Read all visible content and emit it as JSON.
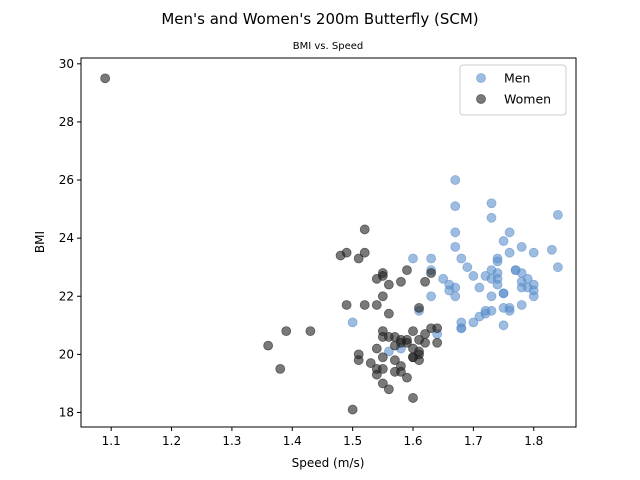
{
  "chart_data": {
    "type": "scatter",
    "title": "Men's and Women's 200m Butterfly (SCM)",
    "subtitle": "BMI vs. Speed",
    "xlabel": "Speed (m/s)",
    "ylabel": "BMI",
    "xlim": [
      1.05,
      1.87
    ],
    "ylim": [
      17.5,
      30.2
    ],
    "xticks": [
      1.1,
      1.2,
      1.3,
      1.4,
      1.5,
      1.6,
      1.7,
      1.8
    ],
    "yticks": [
      18,
      20,
      22,
      24,
      26,
      28,
      30
    ],
    "grid": false,
    "legend_position": "top-right",
    "series": [
      {
        "name": "Men",
        "color": "#5b8fcb",
        "opacity": 0.6,
        "points": [
          [
            1.5,
            21.1
          ],
          [
            1.56,
            20.1
          ],
          [
            1.58,
            20.2
          ],
          [
            1.6,
            23.3
          ],
          [
            1.61,
            21.5
          ],
          [
            1.63,
            23.3
          ],
          [
            1.63,
            22.9
          ],
          [
            1.63,
            22.0
          ],
          [
            1.64,
            20.7
          ],
          [
            1.65,
            22.6
          ],
          [
            1.66,
            22.2
          ],
          [
            1.66,
            22.4
          ],
          [
            1.67,
            26.0
          ],
          [
            1.67,
            25.1
          ],
          [
            1.67,
            24.2
          ],
          [
            1.67,
            23.7
          ],
          [
            1.67,
            22.3
          ],
          [
            1.67,
            22.0
          ],
          [
            1.68,
            20.9
          ],
          [
            1.68,
            20.9
          ],
          [
            1.68,
            21.1
          ],
          [
            1.68,
            23.3
          ],
          [
            1.69,
            23.0
          ],
          [
            1.7,
            22.7
          ],
          [
            1.7,
            21.1
          ],
          [
            1.71,
            21.3
          ],
          [
            1.71,
            22.3
          ],
          [
            1.72,
            21.5
          ],
          [
            1.72,
            22.7
          ],
          [
            1.72,
            21.4
          ],
          [
            1.73,
            25.2
          ],
          [
            1.73,
            24.7
          ],
          [
            1.73,
            22.9
          ],
          [
            1.73,
            22.6
          ],
          [
            1.73,
            22.0
          ],
          [
            1.73,
            21.5
          ],
          [
            1.74,
            23.3
          ],
          [
            1.74,
            22.8
          ],
          [
            1.74,
            22.6
          ],
          [
            1.74,
            22.4
          ],
          [
            1.74,
            23.2
          ],
          [
            1.75,
            23.9
          ],
          [
            1.75,
            22.1
          ],
          [
            1.75,
            22.1
          ],
          [
            1.75,
            21.6
          ],
          [
            1.75,
            21.0
          ],
          [
            1.76,
            24.2
          ],
          [
            1.76,
            23.5
          ],
          [
            1.76,
            21.6
          ],
          [
            1.76,
            21.5
          ],
          [
            1.77,
            22.9
          ],
          [
            1.77,
            22.9
          ],
          [
            1.78,
            23.7
          ],
          [
            1.78,
            22.8
          ],
          [
            1.78,
            22.5
          ],
          [
            1.78,
            22.3
          ],
          [
            1.78,
            21.7
          ],
          [
            1.79,
            22.6
          ],
          [
            1.79,
            22.3
          ],
          [
            1.8,
            23.5
          ],
          [
            1.8,
            22.4
          ],
          [
            1.8,
            22.2
          ],
          [
            1.8,
            22.0
          ],
          [
            1.83,
            23.6
          ],
          [
            1.84,
            24.8
          ],
          [
            1.84,
            23.0
          ]
        ]
      },
      {
        "name": "Women",
        "color": "#1f1f1f",
        "opacity": 0.6,
        "points": [
          [
            1.09,
            29.5
          ],
          [
            1.36,
            20.3
          ],
          [
            1.38,
            19.5
          ],
          [
            1.39,
            20.8
          ],
          [
            1.43,
            20.8
          ],
          [
            1.48,
            23.4
          ],
          [
            1.49,
            23.5
          ],
          [
            1.49,
            21.7
          ],
          [
            1.5,
            18.1
          ],
          [
            1.51,
            23.3
          ],
          [
            1.51,
            20.0
          ],
          [
            1.51,
            19.8
          ],
          [
            1.52,
            24.3
          ],
          [
            1.52,
            23.5
          ],
          [
            1.52,
            21.7
          ],
          [
            1.53,
            19.7
          ],
          [
            1.54,
            22.6
          ],
          [
            1.54,
            21.7
          ],
          [
            1.54,
            20.2
          ],
          [
            1.54,
            19.5
          ],
          [
            1.54,
            19.3
          ],
          [
            1.55,
            22.8
          ],
          [
            1.55,
            22.7
          ],
          [
            1.55,
            22.0
          ],
          [
            1.55,
            20.8
          ],
          [
            1.55,
            20.6
          ],
          [
            1.55,
            19.9
          ],
          [
            1.55,
            19.5
          ],
          [
            1.55,
            19.0
          ],
          [
            1.56,
            22.4
          ],
          [
            1.56,
            21.4
          ],
          [
            1.56,
            20.6
          ],
          [
            1.56,
            18.8
          ],
          [
            1.57,
            20.6
          ],
          [
            1.57,
            20.3
          ],
          [
            1.57,
            19.8
          ],
          [
            1.57,
            19.4
          ],
          [
            1.58,
            22.5
          ],
          [
            1.58,
            20.5
          ],
          [
            1.58,
            20.4
          ],
          [
            1.58,
            19.6
          ],
          [
            1.58,
            19.4
          ],
          [
            1.59,
            22.9
          ],
          [
            1.59,
            20.5
          ],
          [
            1.59,
            20.4
          ],
          [
            1.59,
            19.2
          ],
          [
            1.6,
            20.8
          ],
          [
            1.6,
            20.2
          ],
          [
            1.6,
            19.9
          ],
          [
            1.6,
            19.9
          ],
          [
            1.61,
            21.6
          ],
          [
            1.61,
            20.1
          ],
          [
            1.61,
            19.8
          ],
          [
            1.6,
            18.5
          ],
          [
            1.62,
            22.5
          ],
          [
            1.62,
            20.7
          ],
          [
            1.62,
            20.4
          ],
          [
            1.63,
            22.8
          ],
          [
            1.63,
            20.9
          ],
          [
            1.64,
            20.9
          ],
          [
            1.64,
            20.4
          ],
          [
            1.61,
            20.0
          ],
          [
            1.61,
            20.5
          ]
        ]
      }
    ]
  }
}
